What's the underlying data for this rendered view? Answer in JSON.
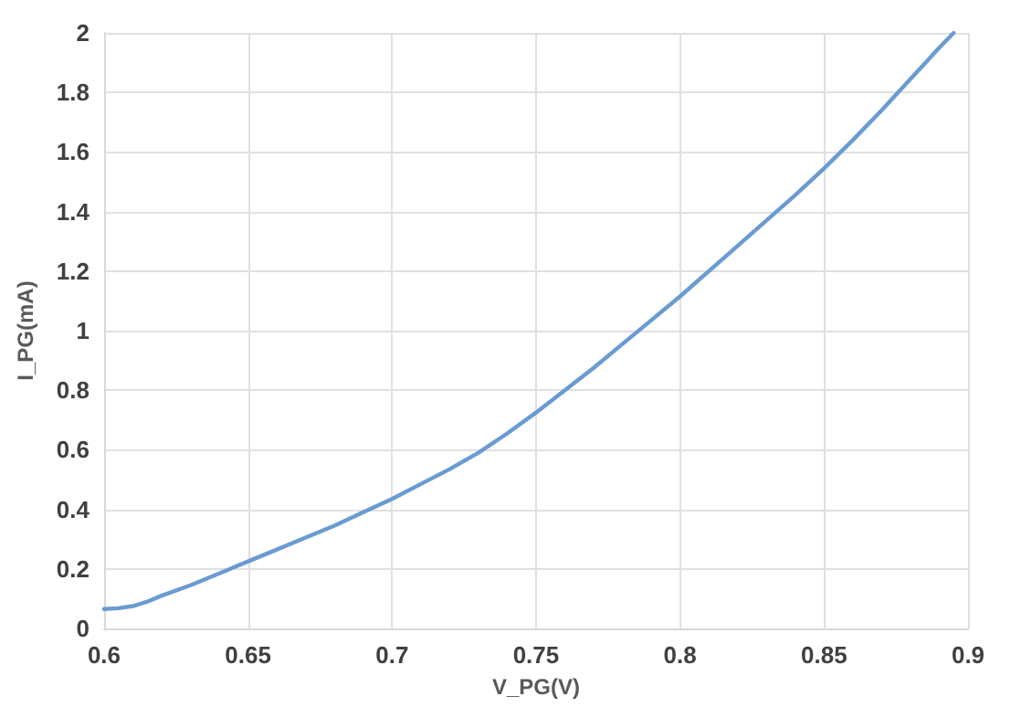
{
  "chart_data": {
    "type": "line",
    "xlabel": "V_PG(V)",
    "ylabel": "I_PG(mA)",
    "x": [
      0.6,
      0.605,
      0.61,
      0.615,
      0.62,
      0.63,
      0.64,
      0.65,
      0.66,
      0.67,
      0.68,
      0.69,
      0.7,
      0.71,
      0.72,
      0.73,
      0.74,
      0.75,
      0.76,
      0.77,
      0.78,
      0.79,
      0.8,
      0.81,
      0.82,
      0.83,
      0.84,
      0.85,
      0.86,
      0.87,
      0.88,
      0.89,
      0.895
    ],
    "series": [
      {
        "color": "#6a9bd2",
        "values": [
          0.065,
          0.068,
          0.075,
          0.09,
          0.11,
          0.145,
          0.185,
          0.225,
          0.265,
          0.305,
          0.345,
          0.39,
          0.435,
          0.485,
          0.535,
          0.59,
          0.655,
          0.725,
          0.8,
          0.875,
          0.955,
          1.035,
          1.115,
          1.2,
          1.285,
          1.37,
          1.455,
          1.545,
          1.64,
          1.74,
          1.845,
          1.95,
          2.0
        ]
      }
    ],
    "xlim": [
      0.6,
      0.9
    ],
    "xticks": [
      0.6,
      0.65,
      0.7,
      0.75,
      0.8,
      0.85,
      0.9
    ],
    "ylim": [
      0,
      2
    ],
    "yticks": [
      0,
      0.2,
      0.4,
      0.6,
      0.8,
      1,
      1.2,
      1.4,
      1.6,
      1.8,
      2
    ],
    "grid": true,
    "marker": "none",
    "line_style": "solid"
  }
}
